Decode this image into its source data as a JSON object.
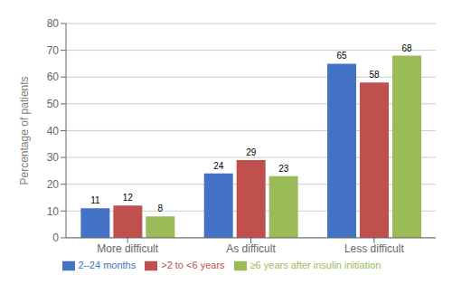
{
  "chart_data": {
    "type": "bar",
    "categories": [
      "More difficult",
      "As difficult",
      "Less difficult"
    ],
    "series": [
      {
        "name": "2–24 months",
        "color": "#4472C4",
        "values": [
          11,
          24,
          65
        ]
      },
      {
        "name": ">2 to <6 years",
        "color": "#C0504D",
        "values": [
          12,
          29,
          58
        ]
      },
      {
        "name": "≥6 years after insulin initiation",
        "color": "#9BBB59",
        "values": [
          8,
          23,
          68
        ]
      }
    ],
    "ylabel": "Percentage of patients",
    "ylim": [
      0,
      80
    ],
    "yticks": [
      0,
      10,
      20,
      30,
      40,
      50,
      60,
      70,
      80
    ],
    "grid": true,
    "data_labels": true,
    "legend": "bottom"
  }
}
